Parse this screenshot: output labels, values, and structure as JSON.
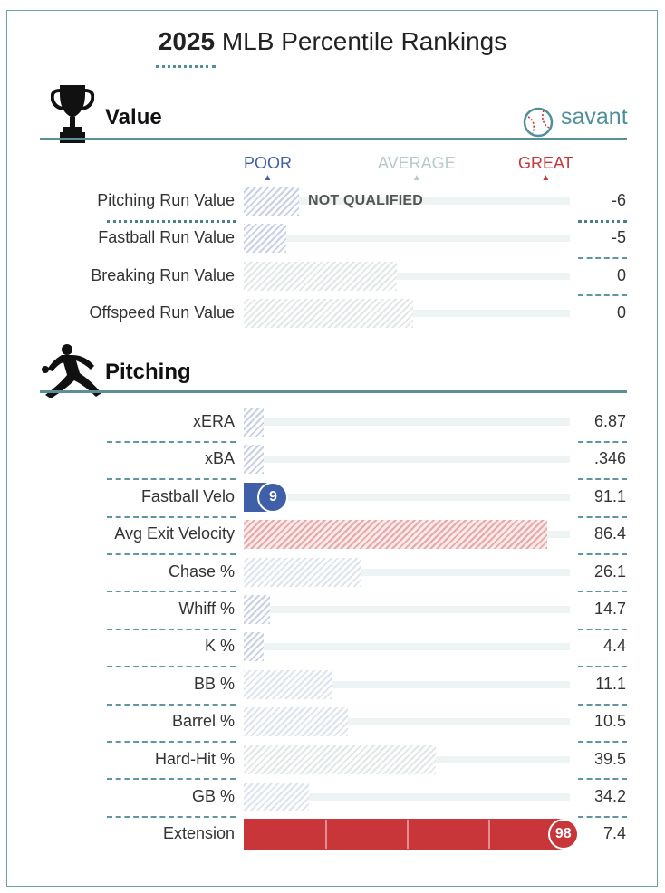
{
  "title": {
    "year": "2025",
    "rest": "MLB Percentile Rankings"
  },
  "brand": {
    "name": "savant"
  },
  "headers": {
    "poor": "POOR",
    "average": "AVERAGE",
    "great": "GREAT"
  },
  "colors": {
    "poor": "#3f5fa8",
    "average": "#b7c9c9",
    "great": "#c8363a",
    "accent": "#5a8f98"
  },
  "sections": {
    "value": {
      "title": "Value",
      "icon": "trophy-icon"
    },
    "pitching": {
      "title": "Pitching",
      "icon": "pitcher-icon"
    }
  },
  "not_qualified_label": "NOT QUALIFIED",
  "chart_data": {
    "type": "bar",
    "title": "2025 MLB Percentile Rankings",
    "xlim": [
      0,
      100
    ],
    "value_metrics": [
      {
        "label": "Pitching Run Value",
        "value": "-6",
        "percentile": 17,
        "style": "hatch-blue",
        "qualified": false
      },
      {
        "label": "Fastball Run Value",
        "value": "-5",
        "percentile": 13,
        "style": "hatch-blue"
      },
      {
        "label": "Breaking Run Value",
        "value": "0",
        "percentile": 47,
        "style": "hatch-gray"
      },
      {
        "label": "Offspeed Run Value",
        "value": "0",
        "percentile": 52,
        "style": "hatch-gray"
      }
    ],
    "pitching_metrics": [
      {
        "label": "xERA",
        "value": "6.87",
        "percentile": 6,
        "style": "hatch-blue"
      },
      {
        "label": "xBA",
        "value": ".346",
        "percentile": 6,
        "style": "hatch-blue"
      },
      {
        "label": "Fastball Velo",
        "value": "91.1",
        "percentile": 9,
        "style": "solid-blue",
        "shown": "9"
      },
      {
        "label": "Avg Exit Velocity",
        "value": "86.4",
        "percentile": 93,
        "style": "hatch-red"
      },
      {
        "label": "Chase %",
        "value": "26.1",
        "percentile": 36,
        "style": "hatch-lblue"
      },
      {
        "label": "Whiff %",
        "value": "14.7",
        "percentile": 8,
        "style": "hatch-blue"
      },
      {
        "label": "K %",
        "value": "4.4",
        "percentile": 6,
        "style": "hatch-blue"
      },
      {
        "label": "BB %",
        "value": "11.1",
        "percentile": 27,
        "style": "hatch-lblue"
      },
      {
        "label": "Barrel %",
        "value": "10.5",
        "percentile": 32,
        "style": "hatch-lblue"
      },
      {
        "label": "Hard-Hit %",
        "value": "39.5",
        "percentile": 59,
        "style": "hatch-gray"
      },
      {
        "label": "GB %",
        "value": "34.2",
        "percentile": 20,
        "style": "hatch-lblue"
      },
      {
        "label": "Extension",
        "value": "7.4",
        "percentile": 98,
        "style": "solid-red",
        "shown": "98"
      }
    ]
  }
}
